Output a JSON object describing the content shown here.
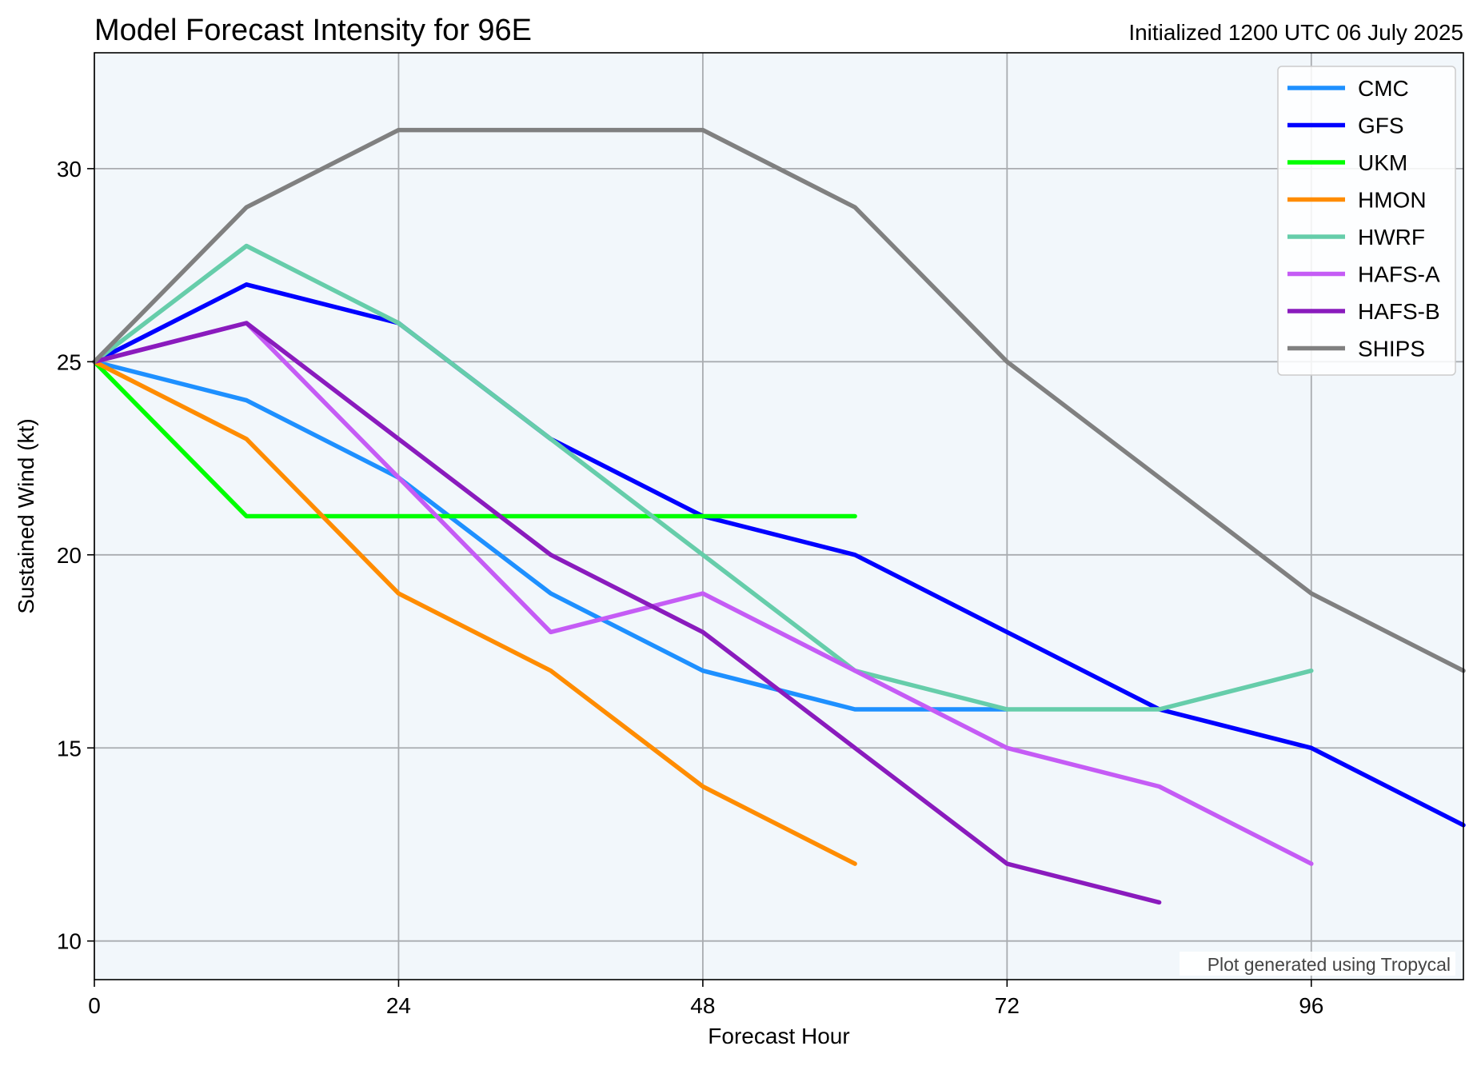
{
  "chart_data": {
    "type": "line",
    "title": "Model Forecast Intensity for 96E",
    "subtitle": "Initialized 1200 UTC 06 July 2025",
    "xlabel": "Forecast Hour",
    "ylabel": "Sustained Wind (kt)",
    "xlim": [
      0,
      108
    ],
    "ylim": [
      9,
      33
    ],
    "xticks": [
      0,
      24,
      48,
      72,
      96
    ],
    "yticks": [
      10,
      15,
      20,
      25,
      30
    ],
    "grid": true,
    "legend_position": "top-right",
    "background_color": "#f2f7fb",
    "credit": "Plot generated using Tropycal",
    "series": [
      {
        "name": "CMC",
        "color": "#1e90ff",
        "x": [
          0,
          12,
          24,
          36,
          48,
          60,
          72
        ],
        "y": [
          25,
          24,
          22,
          19,
          17,
          16,
          16
        ]
      },
      {
        "name": "GFS",
        "color": "#0000ff",
        "x": [
          0,
          12,
          24,
          36,
          48,
          60,
          72,
          84,
          96,
          108
        ],
        "y": [
          25,
          27,
          26,
          23,
          21,
          20,
          18,
          16,
          15,
          13
        ]
      },
      {
        "name": "UKM",
        "color": "#00ff00",
        "x": [
          0,
          12,
          24,
          36,
          48,
          60
        ],
        "y": [
          25,
          21,
          21,
          21,
          21,
          21
        ]
      },
      {
        "name": "HMON",
        "color": "#ff8c00",
        "x": [
          0,
          12,
          24,
          36,
          48,
          60
        ],
        "y": [
          25,
          23,
          19,
          17,
          14,
          12
        ]
      },
      {
        "name": "HWRF",
        "color": "#66cdaa",
        "x": [
          0,
          12,
          24,
          36,
          48,
          60,
          72,
          84,
          96
        ],
        "y": [
          25,
          28,
          26,
          23,
          20,
          17,
          16,
          16,
          17
        ]
      },
      {
        "name": "HAFS-A",
        "color": "#c55cf5",
        "x": [
          0,
          12,
          24,
          36,
          48,
          60,
          72,
          84,
          96
        ],
        "y": [
          25,
          26,
          22,
          18,
          19,
          17,
          15,
          14,
          12
        ]
      },
      {
        "name": "HAFS-B",
        "color": "#8a1bbd",
        "x": [
          0,
          12,
          24,
          36,
          48,
          60,
          72,
          84
        ],
        "y": [
          25,
          26,
          23,
          20,
          18,
          15,
          12,
          11
        ]
      },
      {
        "name": "SHIPS",
        "color": "#808080",
        "x": [
          0,
          12,
          24,
          36,
          48,
          60,
          72,
          84,
          96,
          108
        ],
        "y": [
          25,
          29,
          31,
          31,
          31,
          29,
          25,
          22,
          19,
          17
        ]
      }
    ]
  }
}
